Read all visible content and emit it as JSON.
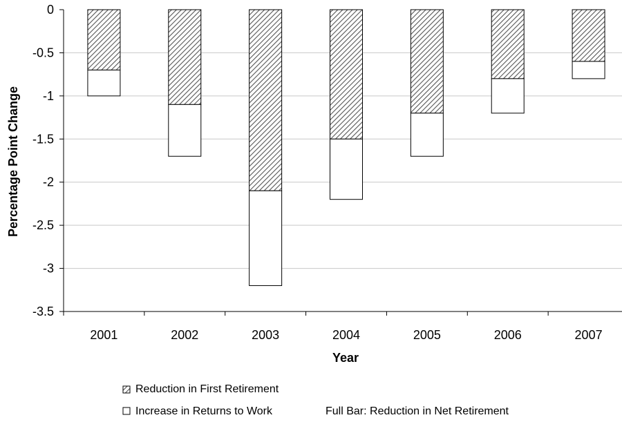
{
  "chart_data": {
    "type": "bar",
    "stacked": true,
    "categories": [
      "2001",
      "2002",
      "2003",
      "2004",
      "2005",
      "2006",
      "2007"
    ],
    "series": [
      {
        "name": "Reduction in First Retirement",
        "values": [
          -0.7,
          -1.1,
          -2.1,
          -1.5,
          -1.2,
          -0.8,
          -0.6
        ],
        "fill": "hatched"
      },
      {
        "name": "Increase in Returns to Work",
        "values": [
          -0.3,
          -0.6,
          -1.1,
          -0.7,
          -0.5,
          -0.4,
          -0.2
        ],
        "fill": "white"
      }
    ],
    "title": "",
    "xlabel": "Year",
    "ylabel": "Percentage Point Change",
    "ylim": [
      -3.5,
      0
    ],
    "yticks": [
      "0",
      "-0.5",
      "-1",
      "-1.5",
      "-2",
      "-2.5",
      "-3",
      "-3.5"
    ],
    "grid": true,
    "legend_placement": "bottom",
    "legend_note": "Full Bar: Reduction in Net Retirement"
  }
}
